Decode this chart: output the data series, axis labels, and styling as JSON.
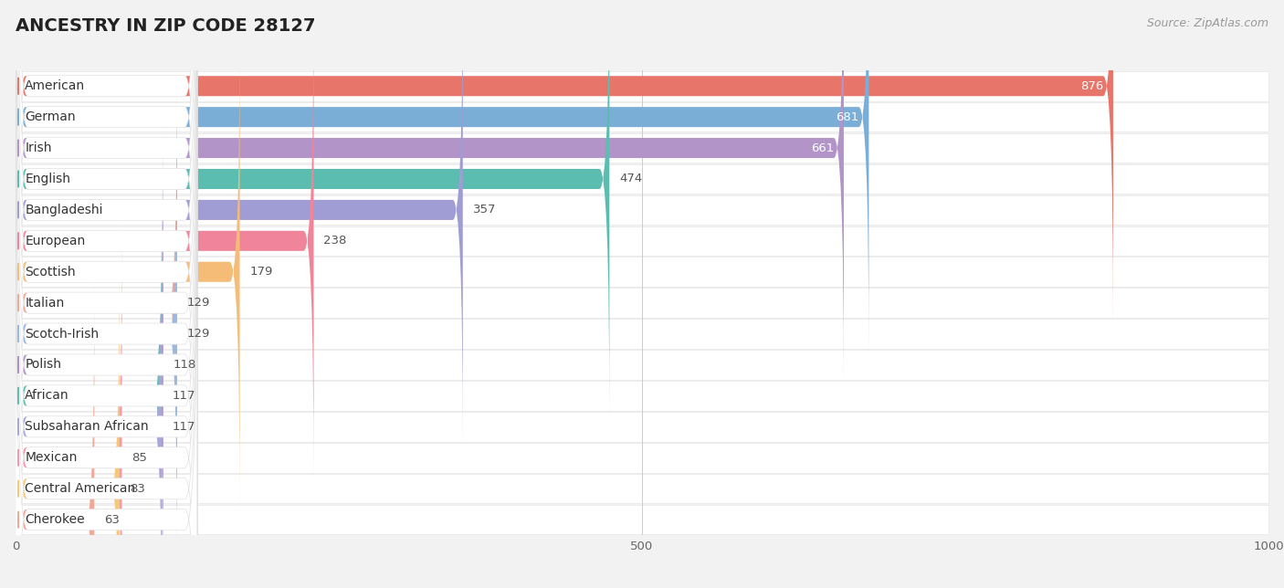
{
  "title": "ANCESTRY IN ZIP CODE 28127",
  "source": "Source: ZipAtlas.com",
  "categories": [
    "American",
    "German",
    "Irish",
    "English",
    "Bangladeshi",
    "European",
    "Scottish",
    "Italian",
    "Scotch-Irish",
    "Polish",
    "African",
    "Subsaharan African",
    "Mexican",
    "Central American",
    "Cherokee"
  ],
  "values": [
    876,
    681,
    661,
    474,
    357,
    238,
    179,
    129,
    129,
    118,
    117,
    117,
    85,
    83,
    63
  ],
  "colors": [
    "#e8756a",
    "#7aaed6",
    "#b294c8",
    "#5bbcb0",
    "#a09cd4",
    "#f0849a",
    "#f5bc78",
    "#f0a898",
    "#9ab8e0",
    "#b090c8",
    "#60c0b0",
    "#a8a8d8",
    "#f898b0",
    "#f5c87a",
    "#f0a898"
  ],
  "xlim_max": 1000,
  "xticks": [
    0,
    500,
    1000
  ],
  "background_color": "#f2f2f2",
  "row_bg_color": "#ffffff",
  "title_fontsize": 14,
  "source_fontsize": 9,
  "label_fontsize": 10,
  "value_fontsize": 9.5,
  "white_label_threshold": 600
}
